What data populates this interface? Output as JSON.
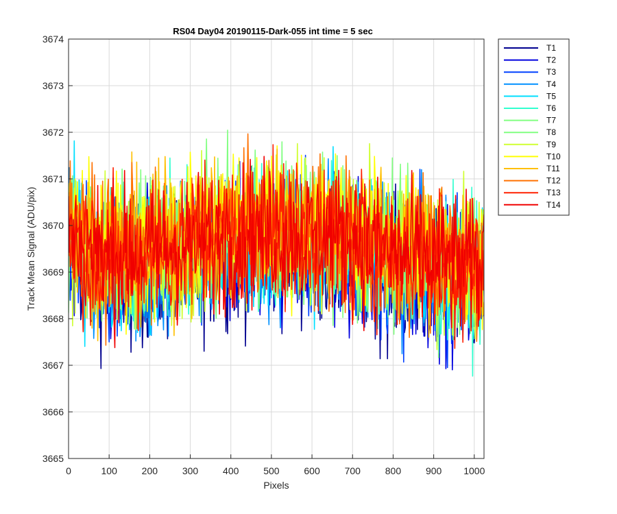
{
  "chart_data": {
    "type": "line",
    "title": "RS04 Day04 20190115-Dark-055 int time = 5 sec",
    "xlabel": "Pixels",
    "ylabel": "Track Mean Signal (ADU/pix)",
    "xlim": [
      0,
      1024
    ],
    "ylim": [
      3665,
      3674
    ],
    "xticks": [
      0,
      100,
      200,
      300,
      400,
      500,
      600,
      700,
      800,
      900,
      1000
    ],
    "yticks": [
      3665,
      3666,
      3667,
      3668,
      3669,
      3670,
      3671,
      3672,
      3673,
      3674
    ],
    "grid": true,
    "legend_position": "outside-top-right",
    "mean_profile": [
      [
        0,
        3669.9
      ],
      [
        50,
        3669.5
      ],
      [
        100,
        3669.3
      ],
      [
        200,
        3669.4
      ],
      [
        300,
        3669.6
      ],
      [
        400,
        3669.8
      ],
      [
        500,
        3669.9
      ],
      [
        600,
        3669.8
      ],
      [
        700,
        3669.7
      ],
      [
        800,
        3669.4
      ],
      [
        900,
        3669.2
      ],
      [
        1000,
        3669.1
      ],
      [
        1024,
        3669.1
      ]
    ],
    "noise_amplitude": 1.4,
    "series": [
      {
        "name": "T1",
        "color": "#00008F",
        "mean_offset": -0.45
      },
      {
        "name": "T2",
        "color": "#0000DF",
        "mean_offset": -0.35
      },
      {
        "name": "T3",
        "color": "#0040FF",
        "mean_offset": -0.28
      },
      {
        "name": "T4",
        "color": "#0090FF",
        "mean_offset": -0.2
      },
      {
        "name": "T5",
        "color": "#00DFFF",
        "mean_offset": -0.12
      },
      {
        "name": "T6",
        "color": "#30FFCF",
        "mean_offset": -0.05
      },
      {
        "name": "T7",
        "color": "#80FF80",
        "mean_offset": 0.0
      },
      {
        "name": "T8",
        "color": "#80FF80",
        "mean_offset": 0.05
      },
      {
        "name": "T9",
        "color": "#CFFF30",
        "mean_offset": 0.12
      },
      {
        "name": "T10",
        "color": "#FFFF00",
        "mean_offset": 0.2
      },
      {
        "name": "T11",
        "color": "#FFBF00",
        "mean_offset": 0.15
      },
      {
        "name": "T12",
        "color": "#FF7000",
        "mean_offset": 0.08
      },
      {
        "name": "T13",
        "color": "#FF2000",
        "mean_offset": 0.02
      },
      {
        "name": "T14",
        "color": "#F00000",
        "mean_offset": 0.0
      }
    ]
  }
}
